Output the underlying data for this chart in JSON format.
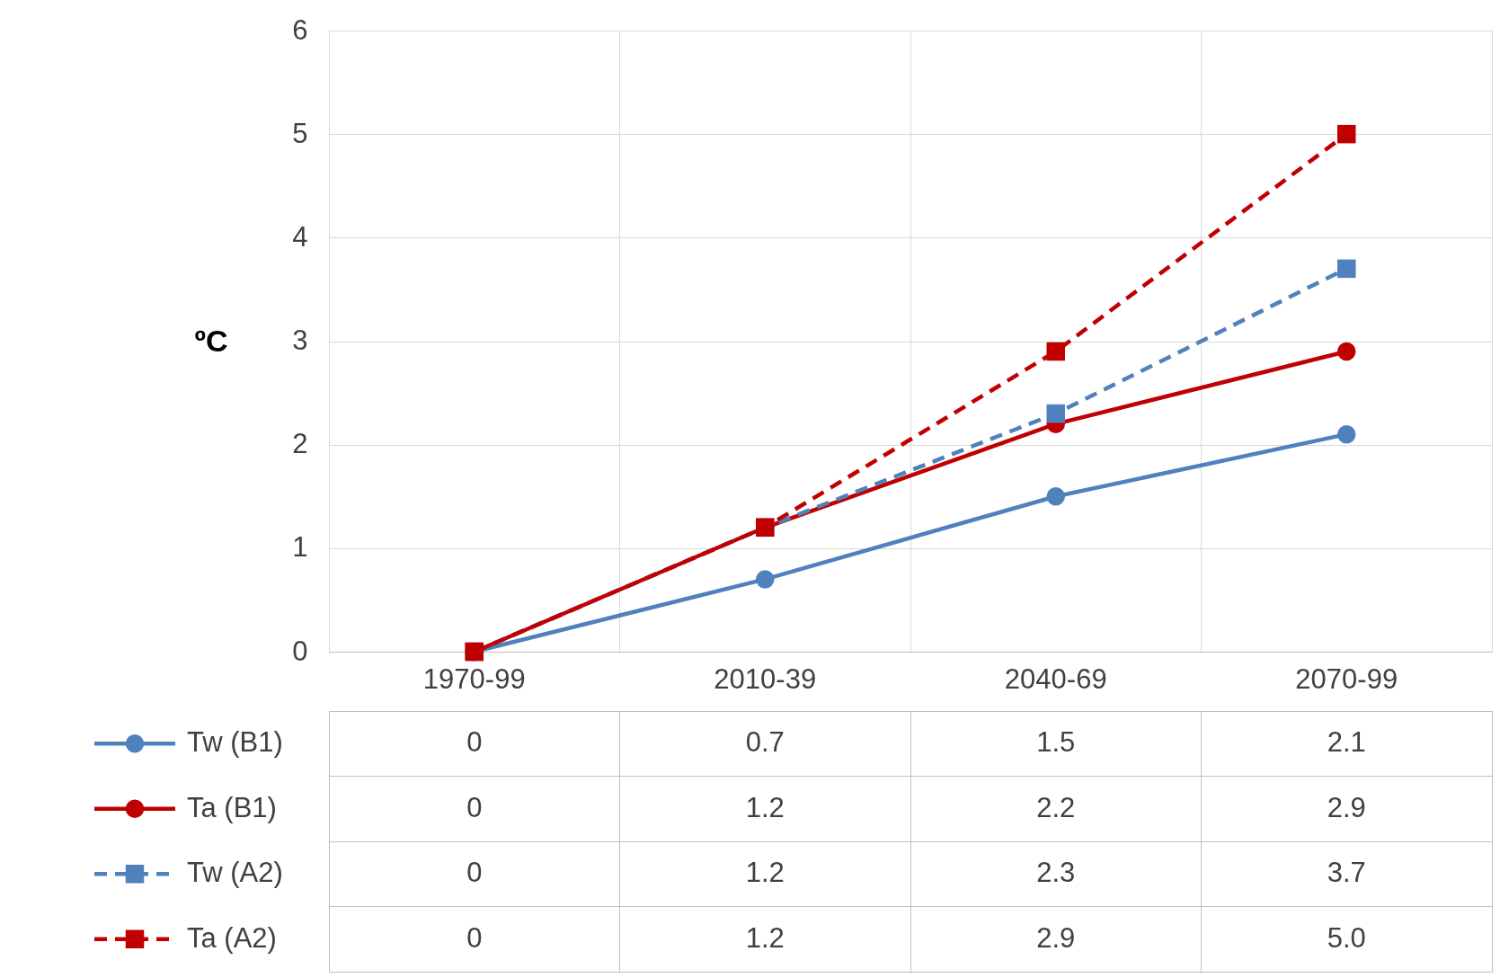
{
  "chart_data": {
    "type": "line",
    "ylabel": "ºC",
    "categories": [
      "1970-99",
      "2010-39",
      "2040-69",
      "2070-99"
    ],
    "ylim": [
      0,
      6
    ],
    "yticks": [
      0,
      1,
      2,
      3,
      4,
      5,
      6
    ],
    "grid": true,
    "legend": "bottom left",
    "series": [
      {
        "name": "Tw (B1)",
        "color": "#4f81bd",
        "marker": "circle",
        "line_style": "solid",
        "values": [
          0,
          0.7,
          1.5,
          2.1
        ],
        "value_labels": [
          "0",
          "0.7",
          "1.5",
          "2.1"
        ]
      },
      {
        "name": "Ta (B1)",
        "color": "#c00000",
        "marker": "circle",
        "line_style": "solid",
        "values": [
          0,
          1.2,
          2.2,
          2.9
        ],
        "value_labels": [
          "0",
          "1.2",
          "2.2",
          "2.9"
        ]
      },
      {
        "name": "Tw (A2)",
        "color": "#4f81bd",
        "marker": "square",
        "line_style": "dashed",
        "values": [
          0,
          1.2,
          2.3,
          3.7
        ],
        "value_labels": [
          "0",
          "1.2",
          "2.3",
          "3.7"
        ]
      },
      {
        "name": "Ta (A2)",
        "color": "#c00000",
        "marker": "square",
        "line_style": "dashed",
        "values": [
          0,
          1.2,
          2.9,
          5.0
        ],
        "value_labels": [
          "0",
          "1.2",
          "2.9",
          "5.0"
        ]
      }
    ]
  }
}
